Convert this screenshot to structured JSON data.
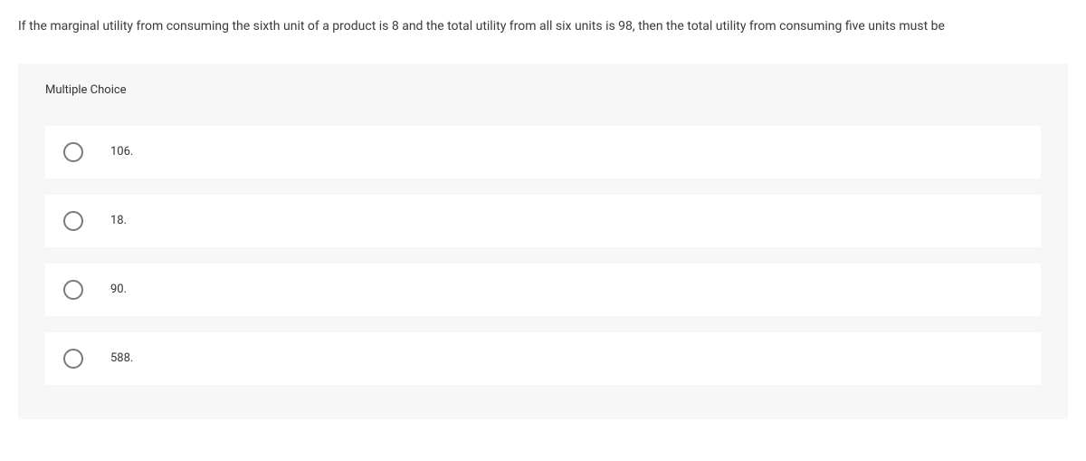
{
  "question": {
    "text": "If the marginal utility from consuming the sixth unit of a product is 8 and the total utility from all six units is 98, then the total utility from consuming five units must be"
  },
  "mc": {
    "header": "Multiple Choice",
    "options": [
      {
        "label": "106."
      },
      {
        "label": "18."
      },
      {
        "label": "90."
      },
      {
        "label": "588."
      }
    ]
  },
  "styling": {
    "background_color": "#ffffff",
    "panel_background": "#f7f7f7",
    "option_background": "#ffffff",
    "text_color": "#333333",
    "radio_border_color": "#7a7a7a",
    "question_fontsize": 14,
    "label_fontsize": 13,
    "radio_size": 22
  }
}
